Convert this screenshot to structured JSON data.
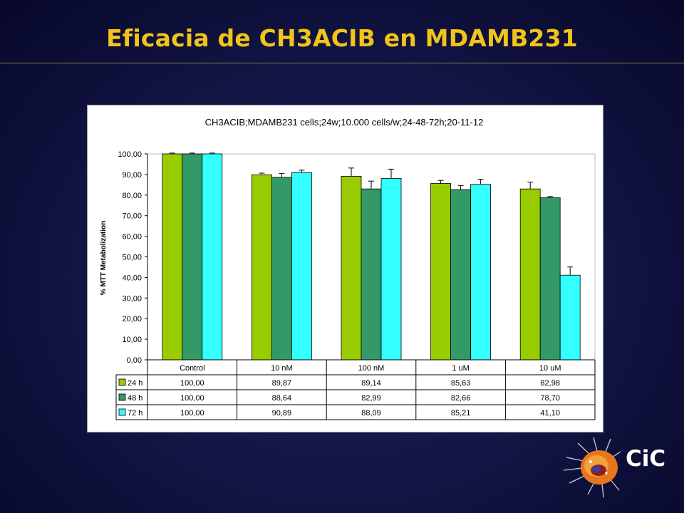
{
  "slide": {
    "title": "Eficacia de CH3ACIB en MDAMB231",
    "logo_text": "CiC"
  },
  "colors": {
    "background": "#141646",
    "title": "#f0c419",
    "series_24h": "#99cc00",
    "series_48h": "#339966",
    "series_72h": "#33ffff"
  },
  "chart_data": {
    "type": "bar",
    "title": "CH3ACIB;MDAMB231 cells;24w;10.000 cells/w;24-48-72h;20-11-12",
    "xlabel": "",
    "ylabel": "% MTT Metabolization",
    "ylim": [
      0,
      100
    ],
    "yticks": [
      "0,00",
      "10,00",
      "20,00",
      "30,00",
      "40,00",
      "50,00",
      "60,00",
      "70,00",
      "80,00",
      "90,00",
      "100,00"
    ],
    "categories": [
      "Control",
      "10 nM",
      "100 nM",
      "1 uM",
      "10 uM"
    ],
    "series": [
      {
        "name": "24 h",
        "color": "#99cc00",
        "values": [
          100.0,
          89.87,
          89.14,
          85.63,
          82.98
        ],
        "labels": [
          "100,00",
          "89,87",
          "89,14",
          "85,63",
          "82,98"
        ],
        "errors": [
          0.4,
          0.8,
          4.0,
          1.5,
          3.3
        ]
      },
      {
        "name": "48 h",
        "color": "#339966",
        "values": [
          100.0,
          88.64,
          82.99,
          82.66,
          78.7
        ],
        "labels": [
          "100,00",
          "88,64",
          "82,99",
          "82,66",
          "78,70"
        ],
        "errors": [
          0.4,
          1.8,
          3.8,
          2.0,
          0.6
        ]
      },
      {
        "name": "72 h",
        "color": "#33ffff",
        "values": [
          100.0,
          90.89,
          88.09,
          85.21,
          41.1
        ],
        "labels": [
          "100,00",
          "90,89",
          "88,09",
          "85,21",
          "41,10"
        ],
        "errors": [
          0.4,
          1.2,
          4.5,
          2.5,
          4.0
        ]
      }
    ],
    "legend_placement": "data-table",
    "grid": false
  }
}
